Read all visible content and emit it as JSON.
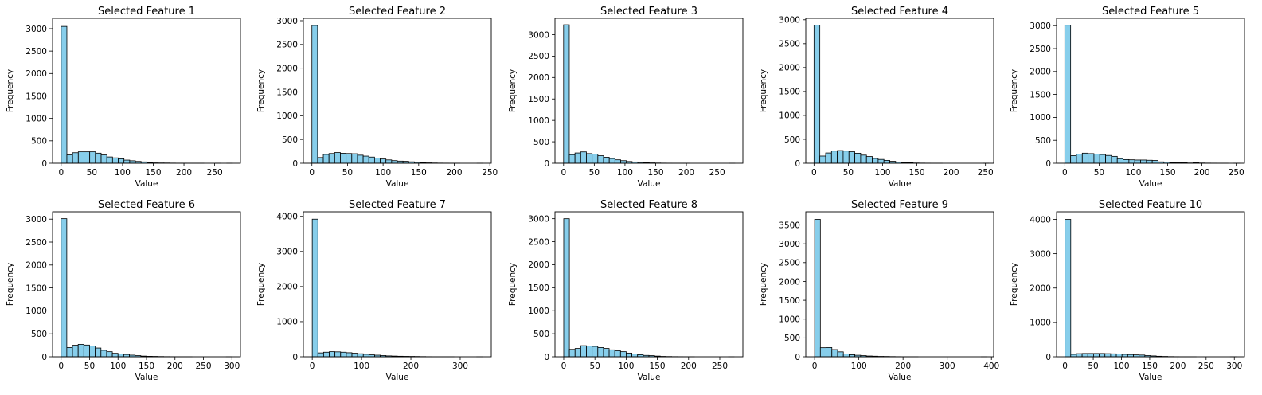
{
  "style": {
    "bar_fill": "#87ceeb",
    "bar_edge": "#000000",
    "axes_color": "#000000"
  },
  "chart_data": [
    {
      "type": "bar",
      "title": "Selected Feature 1",
      "xlabel": "Value",
      "ylabel": "Frequency",
      "x_ticks": [
        0,
        50,
        100,
        150,
        200,
        250
      ],
      "y_ticks": [
        0,
        500,
        1000,
        1500,
        2000,
        2500,
        3000
      ],
      "xlim": [
        -14,
        292
      ],
      "ylim": [
        0,
        3230
      ],
      "bin_start": 0,
      "bin_width": 9.3,
      "values": [
        3050,
        185,
        235,
        255,
        255,
        255,
        225,
        185,
        140,
        120,
        100,
        70,
        55,
        40,
        30,
        15,
        8,
        6,
        5,
        3,
        2,
        2,
        1,
        1,
        1,
        0,
        0,
        1,
        0,
        1
      ]
    },
    {
      "type": "bar",
      "title": "Selected Feature 2",
      "xlabel": "Value",
      "ylabel": "Frequency",
      "x_ticks": [
        0,
        50,
        100,
        150,
        200,
        250
      ],
      "y_ticks": [
        0,
        500,
        1000,
        1500,
        2000,
        2500,
        3000
      ],
      "xlim": [
        -12,
        252
      ],
      "ylim": [
        0,
        3050
      ],
      "bin_start": 0,
      "bin_width": 8.0,
      "values": [
        2900,
        120,
        185,
        205,
        225,
        210,
        205,
        200,
        170,
        150,
        130,
        110,
        90,
        70,
        55,
        45,
        40,
        30,
        20,
        12,
        8,
        5,
        3,
        2,
        1,
        1,
        0,
        0,
        0,
        1
      ]
    },
    {
      "type": "bar",
      "title": "Selected Feature 3",
      "xlabel": "Value",
      "ylabel": "Frequency",
      "x_ticks": [
        0,
        50,
        100,
        150,
        200,
        250
      ],
      "y_ticks": [
        0,
        500,
        1000,
        1500,
        2000,
        2500,
        3000
      ],
      "xlim": [
        -14,
        292
      ],
      "ylim": [
        0,
        3380
      ],
      "bin_start": 0,
      "bin_width": 9.3,
      "values": [
        3230,
        200,
        240,
        265,
        225,
        215,
        175,
        140,
        110,
        80,
        60,
        40,
        30,
        20,
        12,
        8,
        5,
        3,
        2,
        1,
        1,
        1,
        0,
        0,
        0,
        0,
        0,
        0,
        0,
        1
      ]
    },
    {
      "type": "bar",
      "title": "Selected Feature 4",
      "xlabel": "Value",
      "ylabel": "Frequency",
      "x_ticks": [
        0,
        50,
        100,
        150,
        200,
        250
      ],
      "y_ticks": [
        0,
        500,
        1000,
        1500,
        2000,
        2500,
        3000
      ],
      "xlim": [
        -12,
        262
      ],
      "ylim": [
        0,
        3030
      ],
      "bin_start": 0,
      "bin_width": 8.5,
      "values": [
        2890,
        150,
        215,
        255,
        265,
        255,
        240,
        210,
        170,
        140,
        100,
        80,
        60,
        40,
        25,
        15,
        10,
        5,
        3,
        2,
        1,
        1,
        0,
        0,
        0,
        0,
        0,
        0,
        0,
        1
      ]
    },
    {
      "type": "bar",
      "title": "Selected Feature 5",
      "xlabel": "Value",
      "ylabel": "Frequency",
      "x_ticks": [
        0,
        50,
        100,
        150,
        200,
        250
      ],
      "y_ticks": [
        0,
        500,
        1000,
        1500,
        2000,
        2500,
        3000
      ],
      "xlim": [
        -12,
        262
      ],
      "ylim": [
        0,
        3160
      ],
      "bin_start": 0,
      "bin_width": 8.5,
      "values": [
        3010,
        165,
        200,
        220,
        210,
        200,
        190,
        170,
        150,
        100,
        80,
        75,
        70,
        70,
        65,
        60,
        30,
        25,
        15,
        10,
        10,
        5,
        10,
        5,
        3,
        2,
        1,
        1,
        0,
        1
      ]
    },
    {
      "type": "bar",
      "title": "Selected Feature 6",
      "xlabel": "Value",
      "ylabel": "Frequency",
      "x_ticks": [
        0,
        50,
        100,
        150,
        200,
        250,
        300
      ],
      "y_ticks": [
        0,
        500,
        1000,
        1500,
        2000,
        2500,
        3000
      ],
      "xlim": [
        -15,
        315
      ],
      "ylim": [
        0,
        3160
      ],
      "bin_start": 0,
      "bin_width": 10.0,
      "values": [
        3010,
        200,
        250,
        270,
        255,
        235,
        190,
        140,
        110,
        75,
        60,
        50,
        35,
        25,
        15,
        10,
        8,
        5,
        3,
        2,
        1,
        1,
        1,
        0,
        0,
        0,
        0,
        0,
        0,
        1
      ]
    },
    {
      "type": "bar",
      "title": "Selected Feature 7",
      "xlabel": "Value",
      "ylabel": "Frequency",
      "x_ticks": [
        0,
        100,
        200,
        300
      ],
      "y_ticks": [
        0,
        1000,
        2000,
        3000,
        4000
      ],
      "xlim": [
        -18,
        363
      ],
      "ylim": [
        0,
        4130
      ],
      "bin_start": 0,
      "bin_width": 11.5,
      "values": [
        3920,
        110,
        130,
        145,
        140,
        130,
        115,
        100,
        85,
        70,
        55,
        45,
        35,
        25,
        20,
        15,
        12,
        10,
        8,
        5,
        3,
        2,
        1,
        1,
        1,
        0,
        0,
        0,
        0,
        1
      ]
    },
    {
      "type": "bar",
      "title": "Selected Feature 8",
      "xlabel": "Value",
      "ylabel": "Frequency",
      "x_ticks": [
        0,
        50,
        100,
        150,
        200,
        250
      ],
      "y_ticks": [
        0,
        500,
        1000,
        1500,
        2000,
        2500,
        3000
      ],
      "xlim": [
        -14,
        287
      ],
      "ylim": [
        0,
        3150
      ],
      "bin_start": 0,
      "bin_width": 9.1,
      "values": [
        3000,
        160,
        180,
        240,
        235,
        225,
        200,
        180,
        150,
        130,
        110,
        80,
        60,
        45,
        30,
        25,
        15,
        8,
        5,
        3,
        2,
        1,
        1,
        0,
        0,
        0,
        0,
        0,
        0,
        1
      ]
    },
    {
      "type": "bar",
      "title": "Selected Feature 9",
      "xlabel": "Value",
      "ylabel": "Frequency",
      "x_ticks": [
        0,
        100,
        200,
        300,
        400
      ],
      "y_ticks": [
        0,
        500,
        1000,
        1500,
        2000,
        2500,
        3000,
        3500
      ],
      "xlim": [
        -20,
        405
      ],
      "ylim": [
        0,
        3850
      ],
      "bin_start": 0,
      "bin_width": 13.0,
      "values": [
        3650,
        240,
        245,
        190,
        130,
        75,
        55,
        40,
        30,
        20,
        15,
        10,
        8,
        5,
        3,
        2,
        1,
        1,
        0,
        0,
        0,
        0,
        0,
        0,
        0,
        0,
        0,
        0,
        0,
        1
      ]
    },
    {
      "type": "bar",
      "title": "Selected Feature 10",
      "xlabel": "Value",
      "ylabel": "Frequency",
      "x_ticks": [
        0,
        50,
        100,
        150,
        200,
        250,
        300
      ],
      "y_ticks": [
        0,
        1000,
        2000,
        3000,
        4000
      ],
      "xlim": [
        -15,
        318
      ],
      "ylim": [
        0,
        4220
      ],
      "bin_start": 0,
      "bin_width": 10.1,
      "values": [
        4000,
        70,
        90,
        95,
        95,
        95,
        95,
        90,
        85,
        80,
        70,
        65,
        55,
        50,
        35,
        25,
        15,
        10,
        5,
        3,
        2,
        1,
        1,
        0,
        0,
        0,
        0,
        0,
        0,
        1
      ]
    }
  ]
}
